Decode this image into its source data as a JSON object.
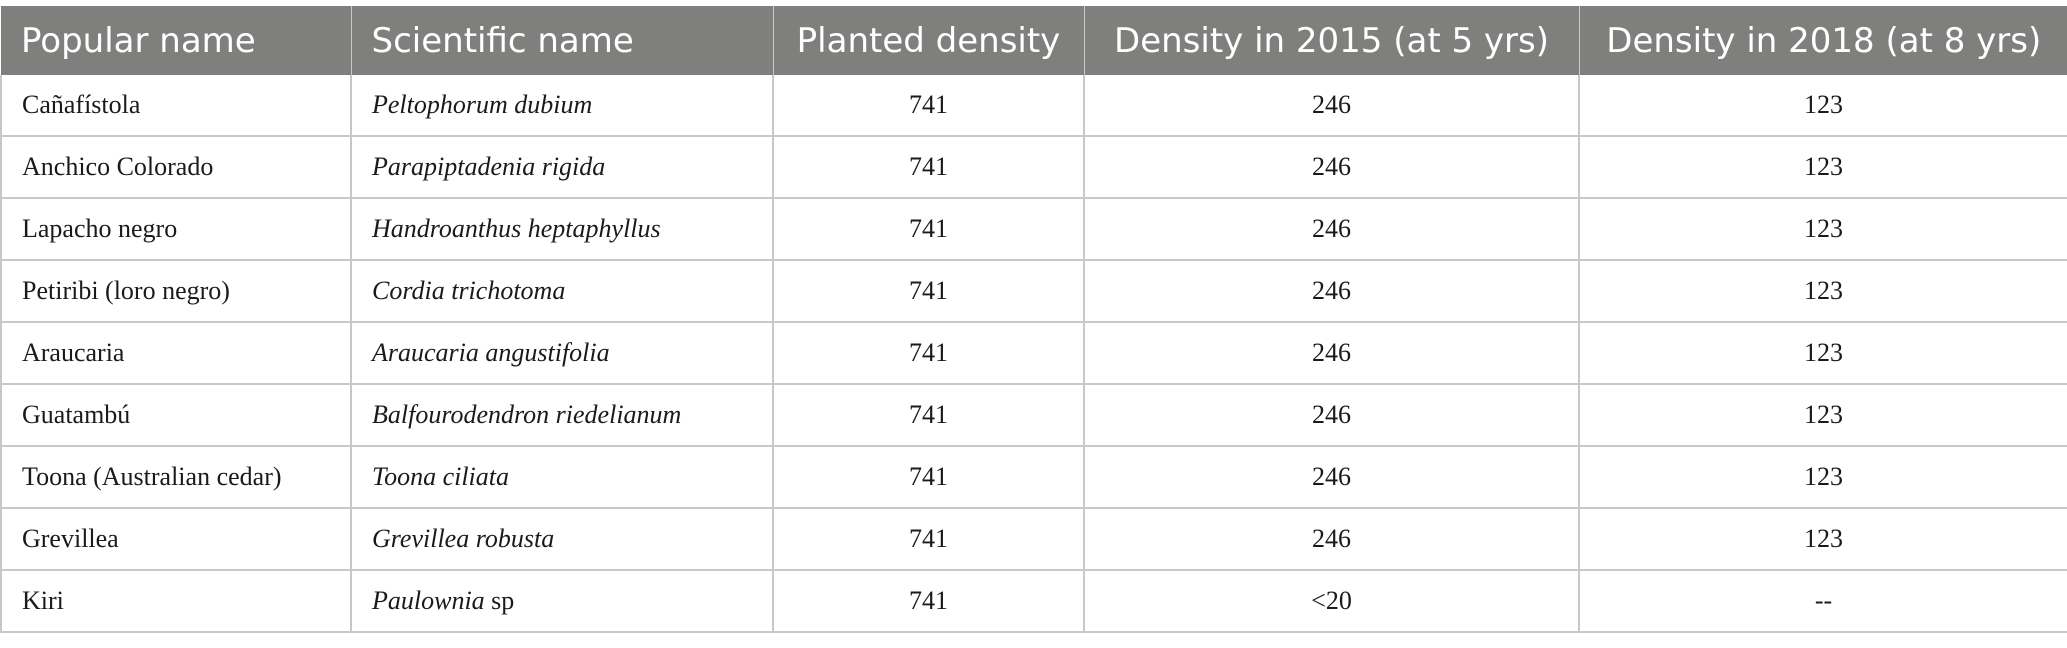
{
  "table": {
    "headers": [
      "Popular name",
      "Scientific name",
      "Planted density",
      "Density in 2015 (at 5 yrs)",
      "Density in 2018 (at 8 yrs)"
    ],
    "rows": [
      {
        "popular": "Cañafístola",
        "sci_italic": "Peltophorum dubium",
        "sci_plain": "",
        "planted": "741",
        "d2015": "246",
        "d2018": "123"
      },
      {
        "popular": "Anchico Colorado",
        "sci_italic": "Parapiptadenia rigida",
        "sci_plain": "",
        "planted": "741",
        "d2015": "246",
        "d2018": "123"
      },
      {
        "popular": "Lapacho negro",
        "sci_italic": "Handroanthus heptaphyllus",
        "sci_plain": "",
        "planted": "741",
        "d2015": "246",
        "d2018": "123"
      },
      {
        "popular": "Petiribi (loro negro)",
        "sci_italic": "Cordia trichotoma",
        "sci_plain": "",
        "planted": "741",
        "d2015": "246",
        "d2018": "123"
      },
      {
        "popular": "Araucaria",
        "sci_italic": "Araucaria angustifolia",
        "sci_plain": "",
        "planted": "741",
        "d2015": "246",
        "d2018": "123"
      },
      {
        "popular": "Guatambú",
        "sci_italic": "Balfourodendron riedelianum",
        "sci_plain": "",
        "planted": "741",
        "d2015": "246",
        "d2018": "123"
      },
      {
        "popular": "Toona (Australian cedar)",
        "sci_italic": "Toona ciliata",
        "sci_plain": "",
        "planted": "741",
        "d2015": "246",
        "d2018": "123"
      },
      {
        "popular": "Grevillea",
        "sci_italic": "Grevillea robusta",
        "sci_plain": "",
        "planted": "741",
        "d2015": "246",
        "d2018": "123"
      },
      {
        "popular": "Kiri",
        "sci_italic": "Paulownia",
        "sci_plain": " sp",
        "planted": "741",
        "d2015": "<20",
        "d2018": "--"
      }
    ]
  },
  "colors": {
    "header_bg": "#7f807e",
    "header_text": "#ffffff",
    "grid": "#c8c8c8"
  }
}
